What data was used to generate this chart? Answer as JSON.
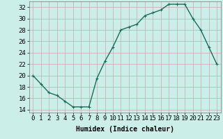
{
  "x": [
    0,
    1,
    2,
    3,
    4,
    5,
    6,
    7,
    8,
    9,
    10,
    11,
    12,
    13,
    14,
    15,
    16,
    17,
    18,
    19,
    20,
    21,
    22,
    23
  ],
  "y": [
    20,
    18.5,
    17,
    16.5,
    15.5,
    14.5,
    14.5,
    14.5,
    19.5,
    22.5,
    25,
    28,
    28.5,
    29,
    30.5,
    31,
    31.5,
    32.5,
    32.5,
    32.5,
    30,
    28,
    25,
    22
  ],
  "line_color": "#1a6b5a",
  "marker_color": "#1a6b5a",
  "bg_color": "#cceee8",
  "grid_color": "#c8a8a8",
  "xlabel": "Humidex (Indice chaleur)",
  "xlim": [
    -0.5,
    23.5
  ],
  "ylim": [
    13.5,
    33
  ],
  "yticks": [
    14,
    16,
    18,
    20,
    22,
    24,
    26,
    28,
    30,
    32
  ],
  "xtick_labels": [
    "0",
    "1",
    "2",
    "3",
    "4",
    "5",
    "6",
    "7",
    "8",
    "9",
    "10",
    "11",
    "12",
    "13",
    "14",
    "15",
    "16",
    "17",
    "18",
    "19",
    "20",
    "21",
    "22",
    "23"
  ],
  "xlabel_fontsize": 7,
  "tick_fontsize": 6.5,
  "line_width": 1.0,
  "marker_size": 2.5
}
